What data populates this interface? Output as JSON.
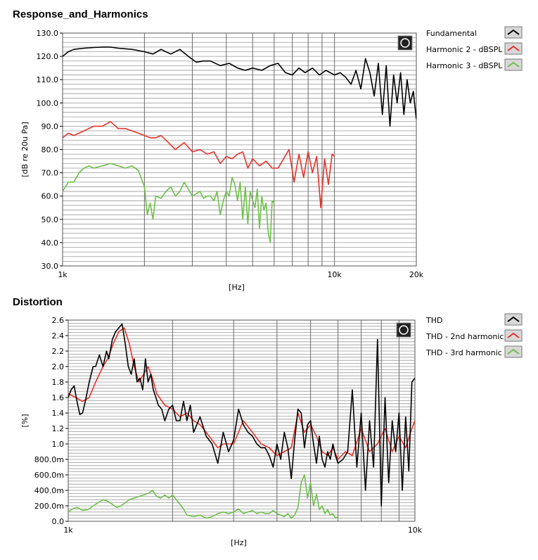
{
  "chart_data": [
    {
      "type": "line",
      "title": "Response_and_Harmonics",
      "xlabel": "[Hz]",
      "ylabel": "[dB re 20u Pa]",
      "xscale": "log",
      "xlim": [
        1000,
        20000
      ],
      "ylim": [
        30,
        130
      ],
      "yticks": [
        "30.0",
        "40.0",
        "50.0",
        "60.0",
        "70.0",
        "80.0",
        "90.0",
        "100.0",
        "110.0",
        "120.0",
        "130.0"
      ],
      "xticks": [
        "1k",
        "10k",
        "20k"
      ],
      "grid": true,
      "legend_position": "right",
      "series": [
        {
          "name": "Fundamental",
          "color": "#000000",
          "x": [
            1000,
            1050,
            1100,
            1200,
            1300,
            1400,
            1500,
            1600,
            1800,
            2000,
            2150,
            2300,
            2500,
            2700,
            2900,
            3100,
            3300,
            3500,
            3800,
            4100,
            4400,
            4700,
            5000,
            5400,
            5800,
            6200,
            6600,
            7000,
            7400,
            7800,
            8300,
            8800,
            9300,
            10000,
            10500,
            11000,
            11500,
            12000,
            12500,
            13000,
            13500,
            14000,
            14500,
            15000,
            15500,
            16000,
            16500,
            17000,
            17500,
            18000,
            18500,
            19000,
            19500,
            20000
          ],
          "values": [
            120,
            122,
            123,
            123.5,
            123.8,
            124,
            124,
            123.5,
            123,
            122,
            121,
            123,
            121,
            123,
            120,
            117.5,
            118,
            118,
            116,
            117,
            115,
            114,
            115,
            114,
            116,
            117,
            113,
            112,
            115,
            113,
            115,
            112,
            114,
            112,
            113,
            111,
            108,
            114,
            106,
            119,
            113,
            103,
            117,
            95,
            116,
            90,
            112,
            100,
            113,
            95,
            110,
            100,
            105,
            93
          ]
        },
        {
          "name": "Harmonic 2 - dBSPL",
          "color": "#e8322a",
          "x": [
            1000,
            1050,
            1100,
            1200,
            1300,
            1400,
            1500,
            1600,
            1700,
            1800,
            1900,
            2000,
            2100,
            2200,
            2300,
            2400,
            2600,
            2800,
            3000,
            3200,
            3400,
            3600,
            3800,
            4000,
            4200,
            4400,
            4600,
            4800,
            5000,
            5300,
            5600,
            5900,
            6200,
            6500,
            6800,
            7100,
            7400,
            7700,
            8000,
            8300,
            8600,
            8900,
            9200,
            9500,
            9800,
            10000
          ],
          "values": [
            85,
            87,
            86,
            88,
            90,
            90,
            92,
            89,
            89,
            88,
            87,
            86,
            85,
            85,
            86,
            84,
            80,
            83,
            79,
            80,
            78,
            79,
            74,
            77,
            76,
            78,
            79,
            72,
            76,
            73,
            75,
            72,
            72,
            76,
            80,
            66,
            78,
            68,
            79,
            70,
            77,
            55,
            76,
            65,
            78,
            77
          ]
        },
        {
          "name": "Harmonic 3 - dBSPL",
          "color": "#6ec04a",
          "x": [
            1000,
            1050,
            1100,
            1150,
            1200,
            1250,
            1300,
            1400,
            1500,
            1600,
            1700,
            1800,
            1900,
            2000,
            2050,
            2100,
            2150,
            2200,
            2300,
            2400,
            2500,
            2600,
            2700,
            2800,
            2900,
            3000,
            3100,
            3200,
            3300,
            3400,
            3500,
            3600,
            3700,
            3800,
            3900,
            4000,
            4100,
            4200,
            4300,
            4400,
            4500,
            4600,
            4700,
            4800,
            4900,
            5000,
            5100,
            5200,
            5300,
            5400,
            5500,
            5600,
            5700,
            5800,
            5900,
            6000
          ],
          "values": [
            62,
            66,
            66,
            70,
            72,
            73,
            72,
            73,
            74,
            73,
            72,
            73,
            71,
            64,
            52,
            57,
            50,
            60,
            59,
            62,
            64,
            60,
            62,
            66,
            63,
            60,
            61,
            62,
            59,
            60,
            60,
            58,
            62,
            52,
            58,
            62,
            60,
            68,
            65,
            58,
            66,
            50,
            64,
            48,
            62,
            58,
            55,
            63,
            46,
            60,
            54,
            57,
            45,
            40,
            58,
            57
          ]
        }
      ]
    },
    {
      "type": "line",
      "title": "Distortion",
      "xlabel": "[Hz]",
      "ylabel": "[%]",
      "xscale": "log",
      "xlim": [
        1000,
        10000
      ],
      "ylim": [
        0,
        2.6
      ],
      "yticks": [
        "0.0",
        "200.0m",
        "400.0m",
        "600.0m",
        "800.0m",
        "1.0",
        "1.2",
        "1.4",
        "1.6",
        "1.8",
        "2.0",
        "2.2",
        "2.4",
        "2.6"
      ],
      "xticks": [
        "1k",
        "10k"
      ],
      "grid": true,
      "legend_position": "right",
      "series": [
        {
          "name": "THD",
          "color": "#000000",
          "x": [
            1000,
            1020,
            1040,
            1060,
            1080,
            1100,
            1120,
            1150,
            1180,
            1200,
            1230,
            1260,
            1290,
            1310,
            1340,
            1370,
            1400,
            1430,
            1460,
            1490,
            1520,
            1550,
            1580,
            1610,
            1640,
            1670,
            1700,
            1730,
            1760,
            1790,
            1820,
            1860,
            1900,
            1950,
            2000,
            2050,
            2100,
            2150,
            2200,
            2250,
            2300,
            2350,
            2400,
            2500,
            2600,
            2700,
            2800,
            2900,
            3000,
            3100,
            3200,
            3300,
            3400,
            3500,
            3600,
            3700,
            3800,
            3900,
            4000,
            4100,
            4200,
            4300,
            4400,
            4500,
            4600,
            4700,
            4800,
            4900,
            5000,
            5100,
            5200,
            5300,
            5400,
            5500,
            5600,
            5700,
            5800,
            5900,
            6000,
            6200,
            6400,
            6600,
            6800,
            7000,
            7200,
            7400,
            7600,
            7800,
            8000,
            8200,
            8400,
            8600,
            8800,
            9000,
            9200,
            9400,
            9600,
            9800,
            10000
          ],
          "values": [
            1.6,
            1.7,
            1.75,
            1.55,
            1.38,
            1.4,
            1.55,
            1.8,
            2.0,
            2.0,
            2.15,
            2.0,
            2.2,
            2.1,
            2.35,
            2.45,
            2.5,
            2.55,
            2.3,
            2.0,
            1.9,
            2.1,
            1.8,
            1.85,
            1.7,
            2.1,
            1.8,
            1.9,
            1.7,
            1.6,
            1.5,
            1.45,
            1.3,
            1.45,
            1.5,
            1.3,
            1.3,
            1.55,
            1.3,
            1.5,
            1.15,
            1.25,
            1.35,
            1.1,
            1.0,
            0.75,
            1.15,
            0.9,
            1.05,
            1.45,
            1.25,
            1.15,
            1.1,
            1.0,
            0.95,
            0.95,
            0.85,
            0.7,
            1.0,
            0.8,
            1.15,
            0.95,
            0.55,
            1.05,
            1.45,
            1.4,
            0.95,
            1.25,
            1.3,
            1.0,
            0.75,
            1.1,
            0.8,
            0.7,
            0.9,
            0.8,
            1.0,
            0.85,
            0.75,
            0.8,
            0.9,
            1.7,
            0.7,
            1.4,
            0.4,
            1.3,
            0.7,
            2.35,
            0.2,
            1.6,
            0.5,
            1.3,
            0.9,
            1.4,
            0.4,
            1.35,
            0.65,
            1.8,
            1.85
          ]
        },
        {
          "name": "THD - 2nd harmonic",
          "color": "#e8322a",
          "x": [
            1000,
            1050,
            1100,
            1150,
            1200,
            1260,
            1300,
            1350,
            1400,
            1450,
            1500,
            1550,
            1600,
            1650,
            1700,
            1750,
            1800,
            1900,
            2000,
            2100,
            2200,
            2300,
            2400,
            2500,
            2600,
            2700,
            2800,
            3000,
            3200,
            3400,
            3600,
            3800,
            4000,
            4200,
            4400,
            4600,
            4800,
            5000,
            5200,
            5400,
            5600,
            5800,
            6000,
            6300,
            6600,
            7000,
            7400,
            7800,
            8200,
            8600,
            9000,
            9400,
            9800,
            10000
          ],
          "values": [
            1.65,
            1.6,
            1.55,
            1.6,
            1.8,
            2.0,
            2.1,
            2.3,
            2.45,
            2.5,
            2.3,
            2.0,
            1.8,
            1.9,
            2.0,
            1.85,
            1.65,
            1.5,
            1.45,
            1.35,
            1.4,
            1.3,
            1.25,
            1.15,
            1.05,
            0.95,
            1.0,
            1.0,
            1.3,
            1.15,
            1.0,
            0.95,
            0.85,
            0.9,
            0.95,
            1.4,
            1.15,
            1.25,
            1.1,
            0.9,
            0.85,
            0.95,
            0.8,
            0.9,
            0.85,
            1.2,
            0.9,
            1.0,
            1.2,
            0.9,
            1.1,
            0.95,
            1.2,
            1.3
          ]
        },
        {
          "name": "THD - 3rd harmonic",
          "color": "#6ec04a",
          "x": [
            1000,
            1030,
            1060,
            1100,
            1140,
            1180,
            1220,
            1260,
            1300,
            1340,
            1380,
            1420,
            1460,
            1500,
            1550,
            1600,
            1650,
            1700,
            1750,
            1800,
            1850,
            1900,
            1950,
            2000,
            2050,
            2100,
            2150,
            2200,
            2300,
            2400,
            2500,
            2600,
            2700,
            2800,
            2900,
            3000,
            3100,
            3200,
            3300,
            3400,
            3500,
            3600,
            3700,
            3800,
            3900,
            4000,
            4100,
            4200,
            4300,
            4400,
            4500,
            4600,
            4700,
            4800,
            4900,
            5000,
            5100,
            5200,
            5300,
            5400,
            5500,
            5600,
            5700,
            5800,
            5900,
            6000
          ],
          "values": [
            0.12,
            0.16,
            0.18,
            0.14,
            0.15,
            0.2,
            0.24,
            0.28,
            0.26,
            0.22,
            0.18,
            0.2,
            0.24,
            0.28,
            0.3,
            0.32,
            0.34,
            0.36,
            0.4,
            0.32,
            0.3,
            0.34,
            0.3,
            0.34,
            0.28,
            0.22,
            0.16,
            0.08,
            0.06,
            0.08,
            0.04,
            0.06,
            0.1,
            0.12,
            0.1,
            0.12,
            0.16,
            0.1,
            0.12,
            0.14,
            0.1,
            0.12,
            0.1,
            0.1,
            0.14,
            0.1,
            0.08,
            0.06,
            0.1,
            0.04,
            0.08,
            0.18,
            0.5,
            0.6,
            0.3,
            0.5,
            0.2,
            0.35,
            0.15,
            0.2,
            0.1,
            0.15,
            0.08,
            0.1,
            0.04,
            0.06
          ]
        }
      ]
    }
  ]
}
